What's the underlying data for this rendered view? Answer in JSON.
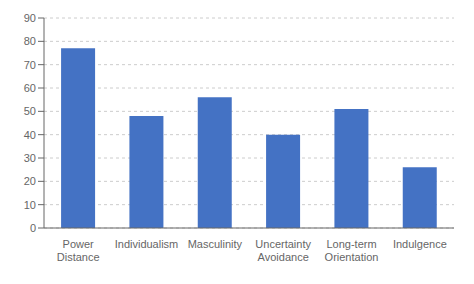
{
  "chart_data": {
    "type": "bar",
    "categories": [
      "Power\nDistance",
      "Individualism",
      "Masculinity",
      "Uncertainty\nAvoidance",
      "Long-term\nOrientation",
      "Indulgence"
    ],
    "values": [
      77,
      48,
      56,
      40,
      51,
      26
    ],
    "color": "#4472c4",
    "ylim": [
      0,
      90
    ],
    "yticks": [
      0,
      10,
      20,
      30,
      40,
      50,
      60,
      70,
      80,
      90
    ],
    "grid": true
  }
}
